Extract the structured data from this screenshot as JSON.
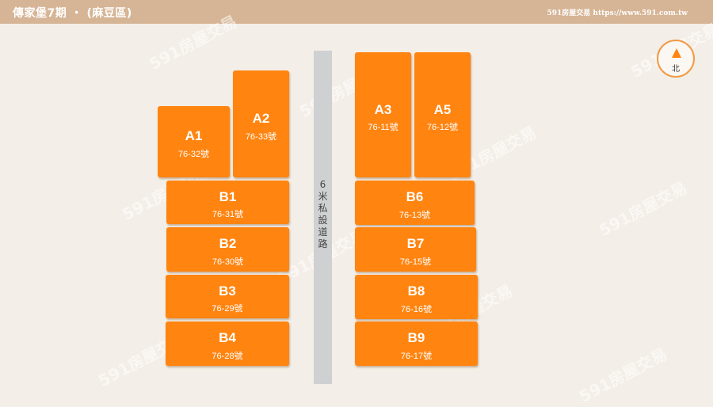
{
  "header": {
    "title": "傳家堡7期 ・ (麻豆區)",
    "credit": "591房屋交易 https://www.591.com.tw"
  },
  "road": {
    "label": "6米私設道路"
  },
  "compass": {
    "label": "北"
  },
  "watermark": "591房屋交易",
  "lots": {
    "a1": {
      "code": "A1",
      "addr": "76-32號"
    },
    "a2": {
      "code": "A2",
      "addr": "76-33號"
    },
    "a3": {
      "code": "A3",
      "addr": "76-11號"
    },
    "a5": {
      "code": "A5",
      "addr": "76-12號"
    },
    "b1": {
      "code": "B1",
      "addr": "76-31號"
    },
    "b2": {
      "code": "B2",
      "addr": "76-30號"
    },
    "b3": {
      "code": "B3",
      "addr": "76-29號"
    },
    "b4": {
      "code": "B4",
      "addr": "76-28號"
    },
    "b6": {
      "code": "B6",
      "addr": "76-13號"
    },
    "b7": {
      "code": "B7",
      "addr": "76-15號"
    },
    "b8": {
      "code": "B8",
      "addr": "76-16號"
    },
    "b9": {
      "code": "B9",
      "addr": "76-17號"
    }
  }
}
